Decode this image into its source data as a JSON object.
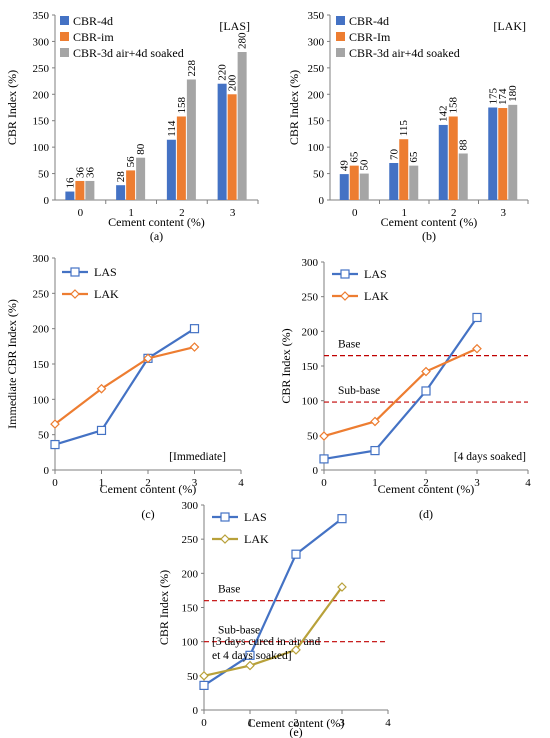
{
  "colors": {
    "cbr4d": "#4472C4",
    "cbrim": "#ED7D31",
    "cbr3d": "#A5A5A5",
    "las_line": "#4472C4",
    "lak_line": "#ED7D31",
    "lak_line_e": "#B8A13A",
    "threshold": "#C00000",
    "axis": "#7F7F7F"
  },
  "chart_data": [
    {
      "id": "a",
      "type": "bar",
      "panel_label": "(a)",
      "tag": "[LAS]",
      "xlabel": "Cement content (%)",
      "ylabel": "CBR Index (%)",
      "categories": [
        "0",
        "1",
        "2",
        "3"
      ],
      "ylim": [
        0,
        350
      ],
      "yticks": [
        "0",
        "50",
        "100",
        "150",
        "200",
        "250",
        "300",
        "350"
      ],
      "legend_position": "top-left",
      "series": [
        {
          "name": "CBR-4d",
          "color_key": "cbr4d",
          "values": [
            16,
            28,
            114,
            220
          ],
          "labels": [
            "16",
            "28",
            "114",
            "220"
          ]
        },
        {
          "name": "CBR-im",
          "color_key": "cbrim",
          "values": [
            36,
            56,
            158,
            200
          ],
          "labels": [
            "36",
            "56",
            "158",
            "200"
          ]
        },
        {
          "name": "CBR-3d air+4d soaked",
          "color_key": "cbr3d",
          "values": [
            36,
            80,
            228,
            280
          ],
          "labels": [
            "36",
            "80",
            "228",
            "280"
          ]
        }
      ]
    },
    {
      "id": "b",
      "type": "bar",
      "panel_label": "(b)",
      "tag": "[LAK]",
      "xlabel": "Cement content (%)",
      "ylabel": "CBR Index (%)",
      "categories": [
        "0",
        "1",
        "2",
        "3"
      ],
      "ylim": [
        0,
        350
      ],
      "yticks": [
        "0",
        "50",
        "100",
        "150",
        "200",
        "250",
        "300",
        "350"
      ],
      "legend_position": "top-left",
      "series": [
        {
          "name": "CBR-4d",
          "color_key": "cbr4d",
          "values": [
            49,
            70,
            142,
            175
          ],
          "labels": [
            "49",
            "70",
            "142",
            "175"
          ]
        },
        {
          "name": "CBR-Im",
          "color_key": "cbrim",
          "values": [
            65,
            115,
            158,
            174
          ],
          "labels": [
            "65",
            "115",
            "158",
            "174"
          ]
        },
        {
          "name": "CBR-3d air+4d soaked",
          "color_key": "cbr3d",
          "values": [
            50,
            65,
            88,
            180
          ],
          "labels": [
            "50",
            "65",
            "88",
            "180"
          ]
        }
      ]
    },
    {
      "id": "c",
      "type": "line",
      "panel_label": "(c)",
      "note": [
        "[Immediate]"
      ],
      "xlabel": "Cement content (%)",
      "ylabel": "Immediate CBR Index (%)",
      "xlim": [
        0,
        4
      ],
      "xticks": [
        "0",
        "1",
        "2",
        "3",
        "4"
      ],
      "ylim": [
        0,
        300
      ],
      "yticks": [
        "0",
        "50",
        "100",
        "150",
        "200",
        "250",
        "300"
      ],
      "legend_position": "top-left",
      "series": [
        {
          "name": "LAS",
          "marker": "square",
          "color_key": "las_line",
          "x": [
            0,
            1,
            2,
            3
          ],
          "y": [
            36,
            56,
            158,
            200
          ]
        },
        {
          "name": "LAK",
          "marker": "diamond",
          "color_key": "lak_line",
          "x": [
            0,
            1,
            2,
            3
          ],
          "y": [
            65,
            115,
            158,
            174
          ]
        }
      ]
    },
    {
      "id": "d",
      "type": "line",
      "panel_label": "(d)",
      "note": [
        "[4 days soaked]"
      ],
      "xlabel": "Cement content (%)",
      "ylabel": "CBR Index (%)",
      "xlim": [
        0,
        4
      ],
      "xticks": [
        "0",
        "1",
        "2",
        "3",
        "4"
      ],
      "ylim": [
        0,
        300
      ],
      "yticks": [
        "0",
        "50",
        "100",
        "150",
        "200",
        "250",
        "300"
      ],
      "legend_position": "top-left",
      "thresholds": [
        {
          "label": "Base",
          "y": 165
        },
        {
          "label": "Sub-base",
          "y": 98
        }
      ],
      "series": [
        {
          "name": "LAS",
          "marker": "square",
          "color_key": "las_line",
          "x": [
            0,
            1,
            2,
            3
          ],
          "y": [
            16,
            28,
            114,
            220
          ]
        },
        {
          "name": "LAK",
          "marker": "diamond",
          "color_key": "lak_line",
          "x": [
            0,
            1,
            2,
            3
          ],
          "y": [
            49,
            70,
            142,
            175
          ]
        }
      ]
    },
    {
      "id": "e",
      "type": "line",
      "panel_label": "(e)",
      "note": [
        "[3 days cured in air and",
        "et 4 days soaked]"
      ],
      "xlabel": "Cement content (%)",
      "ylabel": "CBR Index (%)",
      "xlim": [
        0,
        4
      ],
      "xticks": [
        "0",
        "1",
        "2",
        "3",
        "4"
      ],
      "ylim": [
        0,
        300
      ],
      "yticks": [
        "0",
        "50",
        "100",
        "150",
        "200",
        "250",
        "300"
      ],
      "legend_position": "top-left",
      "thresholds": [
        {
          "label": "Base",
          "y": 160
        },
        {
          "label": "Sub-base",
          "y": 100
        }
      ],
      "series": [
        {
          "name": "LAS",
          "marker": "square",
          "color_key": "las_line",
          "x": [
            0,
            1,
            2,
            3
          ],
          "y": [
            36,
            80,
            228,
            280
          ]
        },
        {
          "name": "LAK",
          "marker": "diamond",
          "color_key": "lak_line_e",
          "x": [
            0,
            1,
            2,
            3
          ],
          "y": [
            50,
            65,
            88,
            180
          ]
        }
      ]
    }
  ]
}
